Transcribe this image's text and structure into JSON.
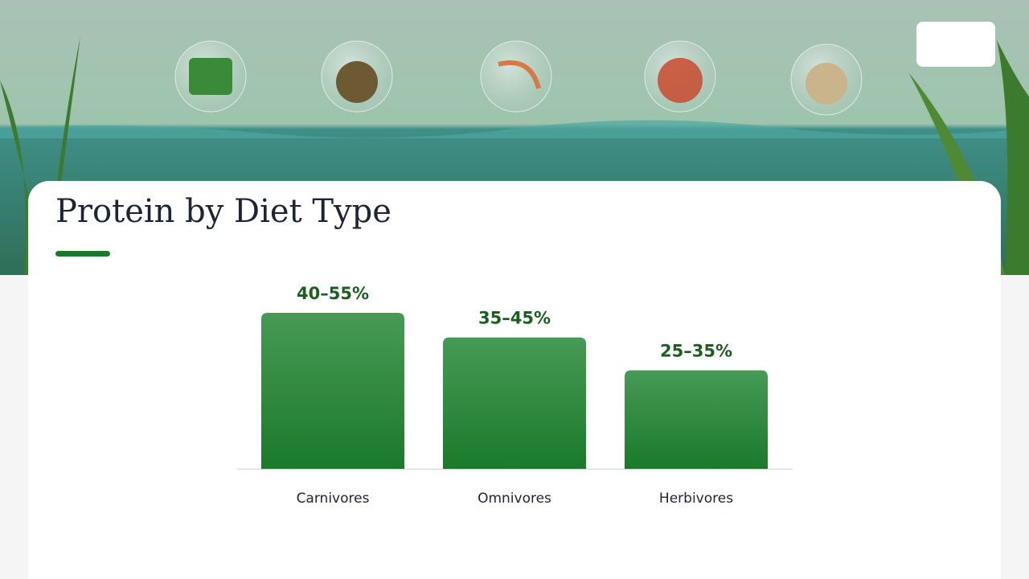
{
  "chart_data": {
    "type": "bar",
    "title": "Protein by Diet Type",
    "categories": [
      "Carnivores",
      "Omnivores",
      "Herbivores"
    ],
    "values": [
      [
        40,
        55
      ],
      [
        35,
        45
      ],
      [
        25,
        35
      ]
    ],
    "value_labels": [
      "40–55%",
      "35–45%",
      "25–35%"
    ],
    "color": "#2e8b3c"
  }
}
